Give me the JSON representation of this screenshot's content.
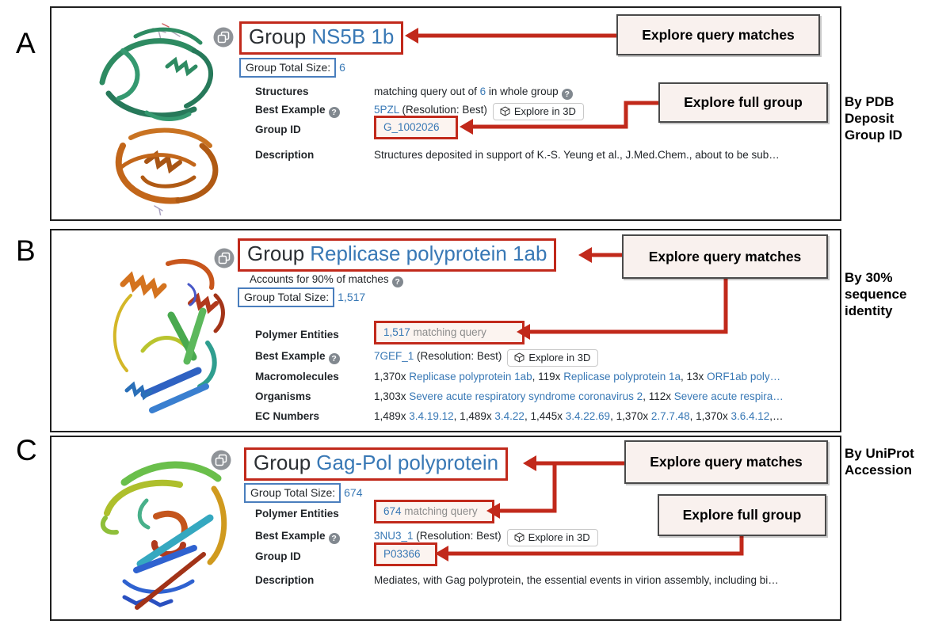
{
  "annotations": {
    "explore_query_matches": "Explore query matches",
    "explore_full_group": "Explore full group"
  },
  "buttons": {
    "explore_3d": "Explore in 3D"
  },
  "icons": {
    "help_glyph": "?",
    "copy_icon": "copy-pages",
    "cube_icon": "3d-cube"
  },
  "colors": {
    "accent_red": "#c1291b",
    "link_blue": "#3878b5",
    "blue_box": "#4a7ebd"
  },
  "side_labels": [
    {
      "lines": [
        "By PDB",
        "Deposit",
        "Group ID"
      ]
    },
    {
      "lines": [
        "By 30%",
        "sequence",
        "identity"
      ]
    },
    {
      "lines": [
        "By UniProt",
        "Accession"
      ]
    }
  ],
  "panels": [
    {
      "letter": "A",
      "title_prefix": "Group",
      "title_name": "NS5B 1b",
      "total_size_label": "Group Total Size:",
      "total_size_value": "6",
      "rows": [
        {
          "label": "Structures",
          "segments": [
            {
              "t": "matching query out of "
            },
            {
              "t": "6",
              "c": "lk"
            },
            {
              "t": " in whole group"
            }
          ]
        },
        {
          "label": "Best Example",
          "segments": [
            {
              "t": "5PZL",
              "c": "lk"
            },
            {
              "t": " (Resolution: Best)"
            }
          ]
        },
        {
          "label": "Group ID",
          "boxed_segments": [
            {
              "t": "G_1002026",
              "c": "lk"
            }
          ]
        },
        {
          "label": "Description",
          "segments": [
            {
              "t": "Structures deposited in support of K.-S. Yeung et al., J.Med.Chem., about to be sub…"
            }
          ]
        }
      ]
    },
    {
      "letter": "B",
      "title_prefix": "Group",
      "title_name": "Replicase polyprotein 1ab",
      "subtitle": "Accounts for 90% of matches",
      "total_size_label": "Group Total Size:",
      "total_size_value": "1,517",
      "rows": [
        {
          "label": "Polymer Entities",
          "boxed_segments": [
            {
              "t": "1,517",
              "c": "lk"
            },
            {
              "t": " matching query",
              "c": "gray"
            }
          ]
        },
        {
          "label": "Best Example",
          "segments": [
            {
              "t": "7GEF_1",
              "c": "lk"
            },
            {
              "t": " (Resolution: Best)"
            }
          ]
        },
        {
          "label": "Macromolecules",
          "segments": [
            {
              "t": "1,370x "
            },
            {
              "t": "Replicase polyprotein 1ab",
              "c": "lk"
            },
            {
              "t": ", 119x "
            },
            {
              "t": "Replicase polyprotein 1a",
              "c": "lk"
            },
            {
              "t": ", 13x "
            },
            {
              "t": "ORF1ab poly…",
              "c": "lk"
            }
          ]
        },
        {
          "label": "Organisms",
          "segments": [
            {
              "t": "1,303x "
            },
            {
              "t": "Severe acute respiratory syndrome coronavirus 2",
              "c": "lk"
            },
            {
              "t": ", 112x "
            },
            {
              "t": "Severe acute respira…",
              "c": "lk"
            }
          ]
        },
        {
          "label": "EC Numbers",
          "segments": [
            {
              "t": "1,489x "
            },
            {
              "t": "3.4.19.12",
              "c": "lk"
            },
            {
              "t": ", 1,489x "
            },
            {
              "t": "3.4.22",
              "c": "lk"
            },
            {
              "t": ", 1,445x "
            },
            {
              "t": "3.4.22.69",
              "c": "lk"
            },
            {
              "t": ", 1,370x "
            },
            {
              "t": "2.7.7.48",
              "c": "lk"
            },
            {
              "t": ", 1,370x "
            },
            {
              "t": "3.6.4.12",
              "c": "lk"
            },
            {
              "t": ",…"
            }
          ]
        }
      ]
    },
    {
      "letter": "C",
      "title_prefix": "Group",
      "title_name": "Gag-Pol polyprotein",
      "total_size_label": "Group Total Size:",
      "total_size_value": "674",
      "rows": [
        {
          "label": "Polymer Entities",
          "boxed_segments": [
            {
              "t": "674",
              "c": "lk"
            },
            {
              "t": " matching query",
              "c": "gray"
            }
          ]
        },
        {
          "label": "Best Example",
          "segments": [
            {
              "t": "3NU3_1",
              "c": "lk"
            },
            {
              "t": " (Resolution: Best)"
            }
          ]
        },
        {
          "label": "Group ID",
          "boxed_segments": [
            {
              "t": "P03366",
              "c": "lk"
            }
          ]
        },
        {
          "label": "Description",
          "segments": [
            {
              "t": "Mediates, with Gag polyprotein, the essential events in virion assembly, including bi…"
            }
          ]
        }
      ]
    }
  ]
}
